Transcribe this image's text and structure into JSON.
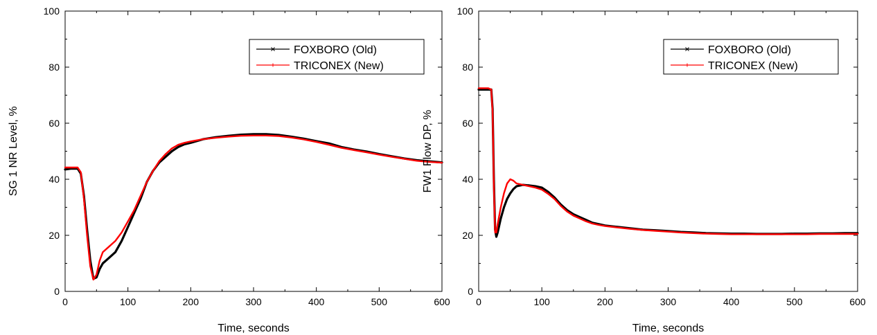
{
  "chart_data": [
    {
      "type": "line",
      "xlabel": "Time, seconds",
      "ylabel": "SG 1 NR Level, %",
      "xlim": [
        0,
        600
      ],
      "ylim": [
        0,
        100
      ],
      "xticks": [
        "0",
        "100",
        "200",
        "300",
        "400",
        "500",
        "600"
      ],
      "yticks": [
        "0",
        "20",
        "40",
        "60",
        "80",
        "100"
      ],
      "grid": false,
      "legend": "top-right",
      "series": [
        {
          "name": "FOXBORO (Old)",
          "color": "#000000",
          "marker": "x",
          "x": [
            0,
            10,
            20,
            25,
            30,
            35,
            40,
            45,
            50,
            55,
            60,
            70,
            80,
            90,
            100,
            110,
            120,
            130,
            140,
            150,
            160,
            170,
            180,
            190,
            200,
            220,
            240,
            260,
            280,
            300,
            320,
            340,
            360,
            380,
            400,
            420,
            440,
            460,
            480,
            500,
            520,
            540,
            560,
            580,
            600
          ],
          "y": [
            43.5,
            43.8,
            43.8,
            42,
            34,
            22,
            11,
            4.5,
            5,
            8,
            10,
            12,
            14,
            18,
            23,
            28,
            33,
            39,
            43,
            46,
            48,
            50,
            51.5,
            52.5,
            53,
            54.3,
            55,
            55.5,
            55.9,
            56.1,
            56.1,
            55.8,
            55.2,
            54.5,
            53.6,
            52.8,
            51.5,
            50.6,
            49.9,
            49,
            48.2,
            47.4,
            46.8,
            46.4,
            46
          ]
        },
        {
          "name": "TRICONEX (New)",
          "color": "#ff0000",
          "marker": "+",
          "x": [
            0,
            10,
            20,
            25,
            30,
            35,
            40,
            45,
            50,
            55,
            60,
            70,
            80,
            90,
            100,
            110,
            120,
            130,
            140,
            150,
            160,
            170,
            180,
            190,
            200,
            220,
            240,
            260,
            280,
            300,
            320,
            340,
            360,
            380,
            400,
            420,
            440,
            460,
            480,
            500,
            520,
            540,
            560,
            580,
            600
          ],
          "y": [
            44.2,
            44.2,
            44.2,
            42.5,
            33,
            20,
            9,
            4.2,
            6,
            11,
            14,
            16,
            18,
            21,
            25,
            29,
            34,
            39,
            43,
            46.5,
            49,
            51,
            52.3,
            53,
            53.5,
            54.3,
            54.8,
            55.2,
            55.5,
            55.6,
            55.6,
            55.4,
            54.9,
            54.2,
            53.3,
            52.3,
            51.2,
            50.4,
            49.6,
            48.8,
            48,
            47.3,
            46.6,
            46.2,
            45.9
          ]
        }
      ]
    },
    {
      "type": "line",
      "xlabel": "Time, seconds",
      "ylabel": "FW1 Flow DP, %",
      "xlim": [
        0,
        600
      ],
      "ylim": [
        0,
        100
      ],
      "xticks": [
        "0",
        "100",
        "200",
        "300",
        "400",
        "500",
        "600"
      ],
      "yticks": [
        "0",
        "20",
        "40",
        "60",
        "80",
        "100"
      ],
      "grid": false,
      "legend": "top-right",
      "series": [
        {
          "name": "FOXBORO (Old)",
          "color": "#000000",
          "marker": "x",
          "x": [
            0,
            10,
            15,
            20,
            22,
            24,
            26,
            28,
            30,
            35,
            40,
            45,
            50,
            55,
            60,
            70,
            80,
            90,
            100,
            110,
            120,
            130,
            140,
            150,
            160,
            170,
            180,
            190,
            200,
            220,
            240,
            260,
            280,
            300,
            320,
            340,
            360,
            380,
            400,
            420,
            440,
            460,
            480,
            500,
            520,
            540,
            560,
            580,
            600
          ],
          "y": [
            72,
            72,
            72,
            72,
            65,
            40,
            22,
            19.5,
            21,
            26,
            30,
            33,
            35,
            36.5,
            37.5,
            38,
            37.8,
            37.5,
            37,
            35.5,
            33.5,
            31,
            29,
            27.5,
            26.5,
            25.5,
            24.5,
            24,
            23.5,
            23,
            22.5,
            22,
            21.8,
            21.5,
            21.2,
            21,
            20.8,
            20.7,
            20.6,
            20.6,
            20.5,
            20.5,
            20.5,
            20.6,
            20.6,
            20.7,
            20.7,
            20.8,
            20.8
          ]
        },
        {
          "name": "TRICONEX (New)",
          "color": "#ff0000",
          "marker": "+",
          "x": [
            0,
            10,
            15,
            20,
            22,
            24,
            26,
            28,
            30,
            35,
            40,
            45,
            50,
            55,
            60,
            70,
            80,
            90,
            100,
            110,
            120,
            130,
            140,
            150,
            160,
            170,
            180,
            190,
            200,
            220,
            240,
            260,
            280,
            300,
            320,
            340,
            360,
            380,
            400,
            420,
            440,
            460,
            480,
            500,
            520,
            540,
            560,
            580,
            600
          ],
          "y": [
            72.5,
            72.5,
            72.5,
            72,
            64,
            38,
            21,
            21,
            24,
            30,
            35,
            38.5,
            40,
            39.5,
            38.5,
            38,
            37.5,
            37,
            36.3,
            34.8,
            33,
            30.5,
            28.5,
            27,
            26,
            25,
            24.2,
            23.7,
            23.3,
            22.8,
            22.3,
            21.9,
            21.6,
            21.3,
            21,
            20.8,
            20.6,
            20.5,
            20.4,
            20.4,
            20.4,
            20.4,
            20.4,
            20.4,
            20.4,
            20.5,
            20.5,
            20.5,
            20.5
          ]
        }
      ]
    }
  ]
}
